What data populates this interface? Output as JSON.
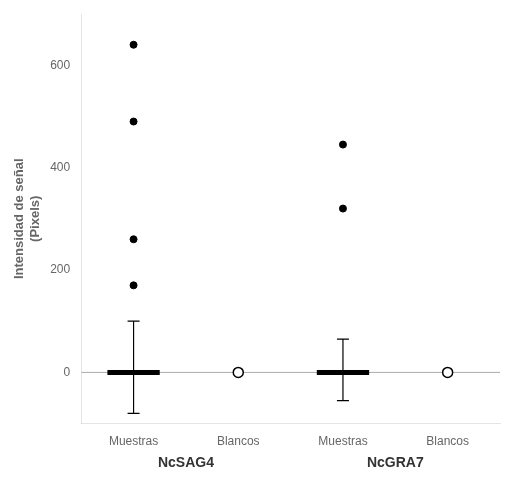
{
  "chart_data": {
    "type": "scatter",
    "ylabel": "Intensidad de señal",
    "ylabel_sub": "(Pixels)",
    "categories": [
      "Muestras",
      "Blancos",
      "Muestras",
      "Blancos"
    ],
    "groups": [
      "NcSAG4",
      "NcGRA7"
    ],
    "points": [
      [
        170,
        260,
        490,
        640
      ],
      [],
      [
        320,
        445
      ],
      []
    ],
    "error_bars": [
      {
        "lower": -80,
        "upper": 100
      },
      null,
      {
        "lower": -55,
        "upper": 65
      },
      null
    ],
    "medians": [
      0,
      null,
      0,
      null
    ],
    "means": {
      "values": [
        null,
        0,
        null,
        0
      ],
      "marker": "open_circle"
    },
    "reference_line": {
      "value": 0,
      "color": "#aaaaaa"
    },
    "color": "#000000",
    "ylim": [
      -100,
      700
    ],
    "yticks": [
      0,
      200,
      400,
      600
    ],
    "grid": false
  }
}
